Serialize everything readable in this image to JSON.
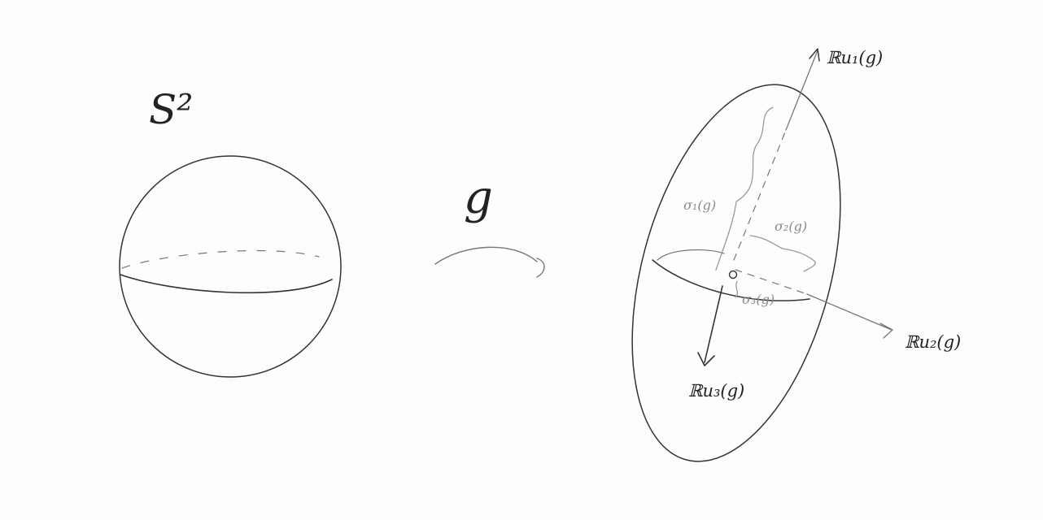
{
  "sphere": {
    "label": "S²"
  },
  "map": {
    "label": "g"
  },
  "ellipsoid": {
    "axes": [
      {
        "id": "axis-1",
        "label": "ℝu₁(g)"
      },
      {
        "id": "axis-2",
        "label": "ℝu₂(g)"
      },
      {
        "id": "axis-3",
        "label": "ℝu₃(g)"
      }
    ],
    "semi_axes": [
      {
        "id": "sigma-1",
        "label": "σ₁(g)"
      },
      {
        "id": "sigma-2",
        "label": "σ₂(g)"
      },
      {
        "id": "sigma-3",
        "label": "σ₃(g)"
      }
    ]
  },
  "colors": {
    "ink": "#333333",
    "pencil": "#9a9a9a",
    "background": "#fdfdfd"
  }
}
